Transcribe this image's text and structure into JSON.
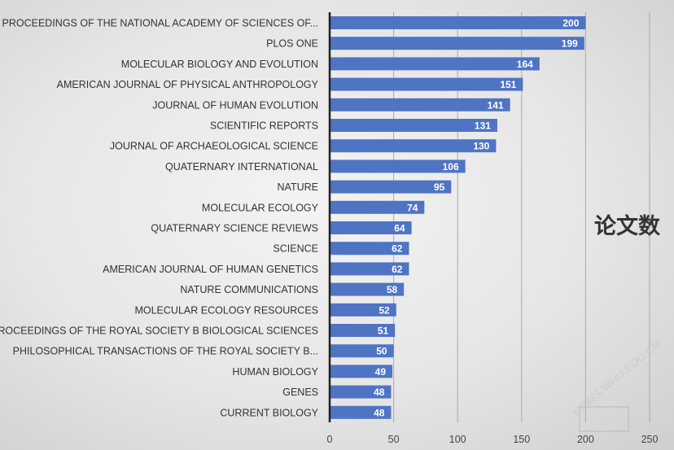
{
  "chart_data": {
    "type": "bar",
    "orientation": "horizontal",
    "categories": [
      "PROCEEDINGS OF THE NATIONAL ACADEMY OF SCIENCES OF...",
      "PLOS ONE",
      "MOLECULAR BIOLOGY AND EVOLUTION",
      "AMERICAN JOURNAL OF PHYSICAL ANTHROPOLOGY",
      "JOURNAL OF HUMAN EVOLUTION",
      "SCIENTIFIC REPORTS",
      "JOURNAL OF ARCHAEOLOGICAL SCIENCE",
      "QUATERNARY INTERNATIONAL",
      "NATURE",
      "MOLECULAR ECOLOGY",
      "QUATERNARY SCIENCE REVIEWS",
      "SCIENCE",
      "AMERICAN JOURNAL OF HUMAN GENETICS",
      "NATURE COMMUNICATIONS",
      "MOLECULAR ECOLOGY RESOURCES",
      "PROCEEDINGS OF THE ROYAL SOCIETY B BIOLOGICAL SCIENCES",
      "PHILOSOPHICAL TRANSACTIONS OF THE ROYAL SOCIETY B...",
      "HUMAN BIOLOGY",
      "GENES",
      "CURRENT BIOLOGY"
    ],
    "series": [
      {
        "name": "论文数",
        "values": [
          200,
          199,
          164,
          151,
          141,
          131,
          130,
          106,
          95,
          74,
          64,
          62,
          62,
          58,
          52,
          51,
          50,
          49,
          48,
          48
        ],
        "color": "#4f74c4"
      }
    ],
    "xlim": [
      0,
      250
    ],
    "xticks": [
      0,
      50,
      100,
      150,
      200,
      250
    ],
    "grid": true,
    "legend_label": "论文数",
    "legend_position": "right",
    "title": "",
    "xlabel": "",
    "ylabel": ""
  },
  "watermark": "NEWS.WHU.EDU.CN"
}
